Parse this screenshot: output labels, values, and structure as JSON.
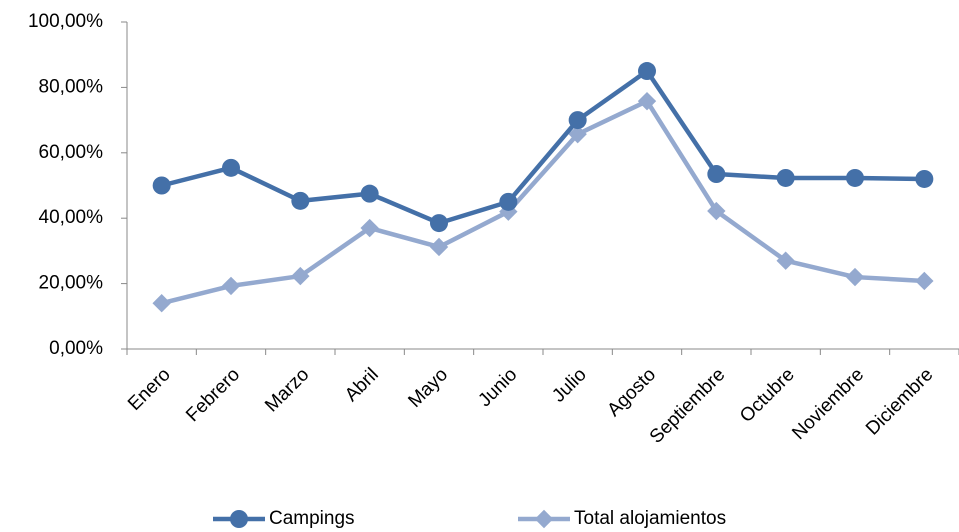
{
  "chart_data": {
    "type": "line",
    "categories": [
      "Enero",
      "Febrero",
      "Marzo",
      "Abril",
      "Mayo",
      "Junio",
      "Julio",
      "Agosto",
      "Septiembre",
      "Octubre",
      "Noviembre",
      "Diciembre"
    ],
    "series": [
      {
        "name": "Campings",
        "color": "#4470a8",
        "values": [
          50,
          55.4,
          45.3,
          47.5,
          38.5,
          45,
          70,
          85,
          53.5,
          52.3,
          52.3,
          52
        ]
      },
      {
        "name": "Total alojamientos",
        "color": "#94a9cf",
        "values": [
          14,
          19.3,
          22.3,
          37,
          31.2,
          42,
          65.7,
          75.8,
          42.2,
          27,
          22,
          20.8
        ]
      }
    ],
    "ylim": [
      0,
      100
    ],
    "yticks": [
      {
        "value": 0,
        "label": "0,00%"
      },
      {
        "value": 20,
        "label": "20,00%"
      },
      {
        "value": 40,
        "label": "40,00%"
      },
      {
        "value": 60,
        "label": "60,00%"
      },
      {
        "value": 80,
        "label": "80,00%"
      },
      {
        "value": 100,
        "label": "100,00%"
      }
    ],
    "grid": false,
    "legend": "bottom"
  }
}
